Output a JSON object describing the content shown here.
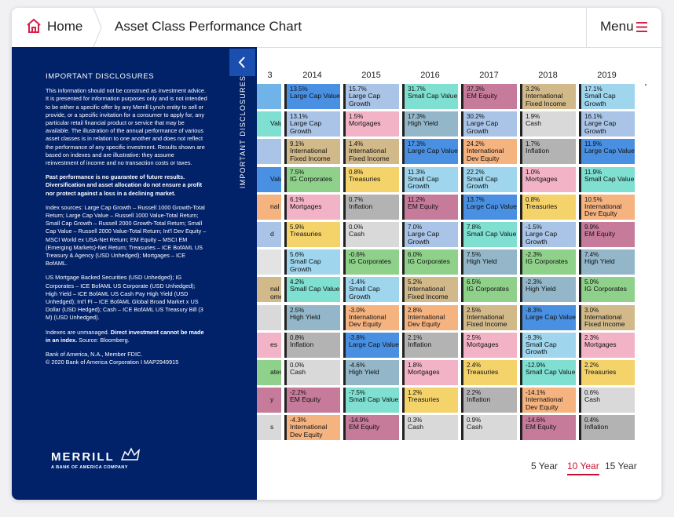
{
  "header": {
    "home": "Home",
    "title": "Asset Class Performance Chart",
    "menu": "Menu"
  },
  "disclosures": {
    "tab": "IMPORTANT DISCLOSURES",
    "heading": "IMPORTANT DISCLOSURES",
    "intro": "This information should not be construed as investment advice. It is presented for information purposes only and is not intended to be either a specific offer by any Merrill Lynch entity to sell or provide, or a specific invitation for a consumer to apply for, any particular retail financial product or service that may be available. The illustration of the annual performance of various asset classes is in relation to one another and does not reflect the performance of any specific investment. Results shown are based on indexes and are illustrative: they assume reinvestment of income and no transaction costs or taxes.",
    "past_performance": "Past performance is no guarantee of future results. Diversification and asset allocation do not ensure a profit nor protect against a loss in a declining market.",
    "index_sources": "Index sources: Large Cap Growth – Russell 1000 Growth-Total Return; Large Cap Value – Russell 1000 Value-Total Return; Small Cap Growth – Russell 2000 Growth-Total Return; Small Cap Value – Russell 2000 Value-Total Return; Int'l Dev Equity – MSCI World ex USA-Net Return; EM Equity – MSCI EM (Emerging Markets)-Net Return; Treasuries – ICE BofAML US Treasury & Agency (USD Unhedged); Mortgages – ICE BofAML.",
    "index_sources_continued": "US Mortgage Backed Securities (USD Unhedged); IG Corporates – ICE BofAML US Corporate (USD Unhedged); High Yield – ICE BofAML US Cash Pay High Yield (USD Unhedged); Int'l FI – ICE BofAML Global Broad Market x US Dollar (USD Hedged); Cash – ICE BofAML US Treasury Bill (3 M) (USD Unhedged).",
    "indexes_note": [
      "Indexes are unmanaged.",
      "Direct investment cannot be made in an index.",
      "Source: Bloomberg."
    ],
    "legal": [
      "Bank of America, N.A., Member FDIC.",
      "© 2020 Bank of America Corporation I MAP2949915"
    ],
    "logo": {
      "name": "MERRILL",
      "tagline": "A BANK OF AMERICA COMPANY"
    }
  },
  "table": {
    "partial_column": {
      "year": "3",
      "cells": [
        {
          "color": "#6fb3e8"
        },
        {
          "color": "#7fdfd0",
          "label": [
            "Value"
          ]
        },
        {
          "color": "#a9c4e6"
        },
        {
          "color": "#4a90e2",
          "label": [
            "Value"
          ]
        },
        {
          "color": "#f5b380",
          "label": [
            "nal"
          ]
        },
        {
          "color": "#a9c4e6",
          "label": [
            "d"
          ]
        },
        {
          "color": "#e3e3e3"
        },
        {
          "color": "#d1b98a",
          "label": [
            "nal",
            "ome"
          ]
        },
        {
          "color": "#d9d9d9"
        },
        {
          "color": "#f2b3c6",
          "label": [
            "es"
          ]
        },
        {
          "color": "#8fd18a",
          "label": [
            "ates"
          ]
        },
        {
          "color": "#c77b9b",
          "label": [
            "y"
          ]
        },
        {
          "color": "#d9d9d9",
          "label": [
            "s"
          ]
        }
      ]
    },
    "columns": [
      {
        "year": "2014",
        "cells": [
          {
            "value": "13.5%",
            "label": "Large Cap Value"
          },
          {
            "value": "13.1%",
            "label": "Large Cap Growth"
          },
          {
            "value": "9.1%",
            "label": "International Fixed Income"
          },
          {
            "value": "7.5%",
            "label": "IG Corporates"
          },
          {
            "value": "6.1%",
            "label": "Mortgages"
          },
          {
            "value": "5.9%",
            "label": "Treasuries"
          },
          {
            "value": "5.6%",
            "label": "Small Cap Growth"
          },
          {
            "value": "4.2%",
            "label": "Small Cap Value"
          },
          {
            "value": "2.5%",
            "label": "High Yield"
          },
          {
            "value": "0.8%",
            "label": "Inflation"
          },
          {
            "value": "0.0%",
            "label": "Cash"
          },
          {
            "value": "-2.2%",
            "label": "EM Equity"
          },
          {
            "value": "-4.3%",
            "label": "International Dev Equity"
          }
        ]
      },
      {
        "year": "2015",
        "cells": [
          {
            "value": "15.7%",
            "label": "Large Cap Growth"
          },
          {
            "value": "1.5%",
            "label": "Mortgages"
          },
          {
            "value": "1.4%",
            "label": "International Fixed Income"
          },
          {
            "value": "0.8%",
            "label": "Treasuries"
          },
          {
            "value": "0.7%",
            "label": "Inflation"
          },
          {
            "value": "0.0%",
            "label": "Cash"
          },
          {
            "value": "-0.6%",
            "label": "IG Corporates"
          },
          {
            "value": "-1.4%",
            "label": "Small Cap Growth"
          },
          {
            "value": "-3.0%",
            "label": "International Dev Equity"
          },
          {
            "value": "-3.8%",
            "label": "Large Cap Value"
          },
          {
            "value": "-4.6%",
            "label": "High Yield"
          },
          {
            "value": "-7.5%",
            "label": "Small Cap Value"
          },
          {
            "value": "-14.9%",
            "label": "EM Equity"
          }
        ]
      },
      {
        "year": "2016",
        "cells": [
          {
            "value": "31.7%",
            "label": "Small Cap Value"
          },
          {
            "value": "17.3%",
            "label": "High Yield"
          },
          {
            "value": "17.3%",
            "label": "Large Cap Value"
          },
          {
            "value": "11.3%",
            "label": "Small Cap Growth"
          },
          {
            "value": "11.2%",
            "label": "EM Equity"
          },
          {
            "value": "7.0%",
            "label": "Large Cap Growth"
          },
          {
            "value": "6.0%",
            "label": "IG Corporates"
          },
          {
            "value": "5.2%",
            "label": "International Fixed Income"
          },
          {
            "value": "2.8%",
            "label": "International Dev Equity"
          },
          {
            "value": "2.1%",
            "label": "Inflation"
          },
          {
            "value": "1.8%",
            "label": "Mortgages"
          },
          {
            "value": "1.2%",
            "label": "Treasuries"
          },
          {
            "value": "0.3%",
            "label": "Cash"
          }
        ]
      },
      {
        "year": "2017",
        "cells": [
          {
            "value": "37.3%",
            "label": "EM Equity"
          },
          {
            "value": "30.2%",
            "label": "Large Cap Growth"
          },
          {
            "value": "24.2%",
            "label": "International Dev Equity"
          },
          {
            "value": "22.2%",
            "label": "Small Cap Growth"
          },
          {
            "value": "13.7%",
            "label": "Large Cap Value"
          },
          {
            "value": "7.8%",
            "label": "Small Cap Value"
          },
          {
            "value": "7.5%",
            "label": "High Yield"
          },
          {
            "value": "6.5%",
            "label": "IG Corporates"
          },
          {
            "value": "2.5%",
            "label": "International Fixed Income"
          },
          {
            "value": "2.5%",
            "label": "Mortgages"
          },
          {
            "value": "2.4%",
            "label": "Treasuries"
          },
          {
            "value": "2.2%",
            "label": "Inflation"
          },
          {
            "value": "0.9%",
            "label": "Cash"
          }
        ]
      },
      {
        "year": "2018",
        "cells": [
          {
            "value": "3.2%",
            "label": "International Fixed Income"
          },
          {
            "value": "1.9%",
            "label": "Cash"
          },
          {
            "value": "1.7%",
            "label": "Inflation"
          },
          {
            "value": "1.0%",
            "label": "Mortgages"
          },
          {
            "value": "0.8%",
            "label": "Treasuries"
          },
          {
            "value": "-1.5%",
            "label": "Large Cap Growth"
          },
          {
            "value": "-2.3%",
            "label": "IG Corporates"
          },
          {
            "value": "-2.3%",
            "label": "High Yield"
          },
          {
            "value": "-8.3%",
            "label": "Large Cap Value"
          },
          {
            "value": "-9.3%",
            "label": "Small Cap Growth"
          },
          {
            "value": "-12.9%",
            "label": "Small Cap Value"
          },
          {
            "value": "-14.1%",
            "label": "International Dev Equity"
          },
          {
            "value": "-14.6%",
            "label": "EM Equity"
          }
        ]
      },
      {
        "year": "2019",
        "cells": [
          {
            "value": "17.1%",
            "label": "Small Cap Growth"
          },
          {
            "value": "16.1%",
            "label": "Large Cap Growth"
          },
          {
            "value": "11.9%",
            "label": "Large Cap Value"
          },
          {
            "value": "11.9%",
            "label": "Small Cap Value"
          },
          {
            "value": "10.5%",
            "label": "International Dev Equity"
          },
          {
            "value": "9.9%",
            "label": "EM Equity"
          },
          {
            "value": "7.4%",
            "label": "High Yield"
          },
          {
            "value": "5.0%",
            "label": "IG Corporates"
          },
          {
            "value": "3.0%",
            "label": "International Fixed Income"
          },
          {
            "value": "2.3%",
            "label": "Mortgages"
          },
          {
            "value": "2.2%",
            "label": "Treasuries"
          },
          {
            "value": "0.6%",
            "label": "Cash"
          },
          {
            "value": "0.4%",
            "label": "Inflation"
          }
        ]
      }
    ]
  },
  "colors": {
    "Large Cap Value": "#4a90e2",
    "Large Cap Growth": "#a9c4e6",
    "Small Cap Value": "#7fdfd0",
    "Small Cap Growth": "#9fd6ee",
    "EM Equity": "#c77b9b",
    "International Fixed Income": "#d1b98a",
    "International Dev Equity": "#f5b380",
    "High Yield": "#93b7c9",
    "Mortgages": "#f2b3c6",
    "Cash": "#d9d9d9",
    "Inflation": "#b3b3b3",
    "IG Corporates": "#8fd18a",
    "Treasuries": "#f5d36b"
  },
  "periods": {
    "options": [
      "5 Year",
      "10 Year",
      "15 Year"
    ],
    "selected": 1
  }
}
